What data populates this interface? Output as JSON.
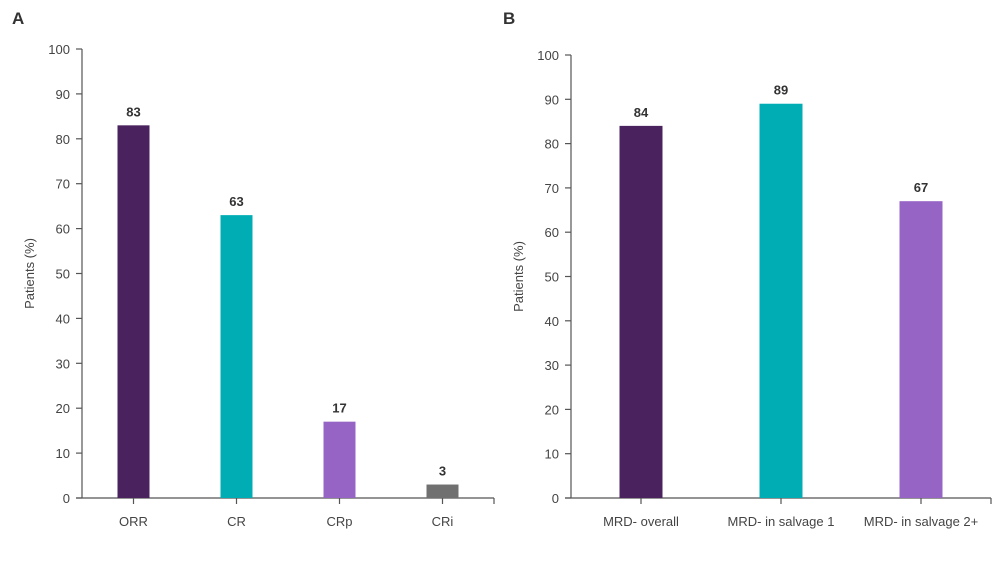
{
  "chart_data": [
    {
      "panel": "A",
      "type": "bar",
      "title": "",
      "xlabel": "",
      "ylabel": "Patients (%)",
      "ylim": [
        0,
        100
      ],
      "yticks": [
        0,
        10,
        20,
        30,
        40,
        50,
        60,
        70,
        80,
        90,
        100
      ],
      "grid": false,
      "categories": [
        "ORR",
        "CR",
        "CRp",
        "CRi"
      ],
      "values": [
        83,
        63,
        17,
        3
      ],
      "data_labels": [
        "83",
        "63",
        "17",
        "3"
      ],
      "colors": [
        "#4a235e",
        "#00adb5",
        "#9564c5",
        "#707070"
      ]
    },
    {
      "panel": "B",
      "type": "bar",
      "title": "",
      "xlabel": "",
      "ylabel": "Patients (%)",
      "ylim": [
        0,
        100
      ],
      "yticks": [
        0,
        10,
        20,
        30,
        40,
        50,
        60,
        70,
        80,
        90,
        100
      ],
      "grid": false,
      "categories": [
        "MRD- overall",
        "MRD- in salvage 1",
        "MRD- in salvage 2+"
      ],
      "values": [
        84,
        89,
        67
      ],
      "data_labels": [
        "84",
        "89",
        "67"
      ],
      "colors": [
        "#4a235e",
        "#00adb5",
        "#9564c5"
      ]
    }
  ]
}
